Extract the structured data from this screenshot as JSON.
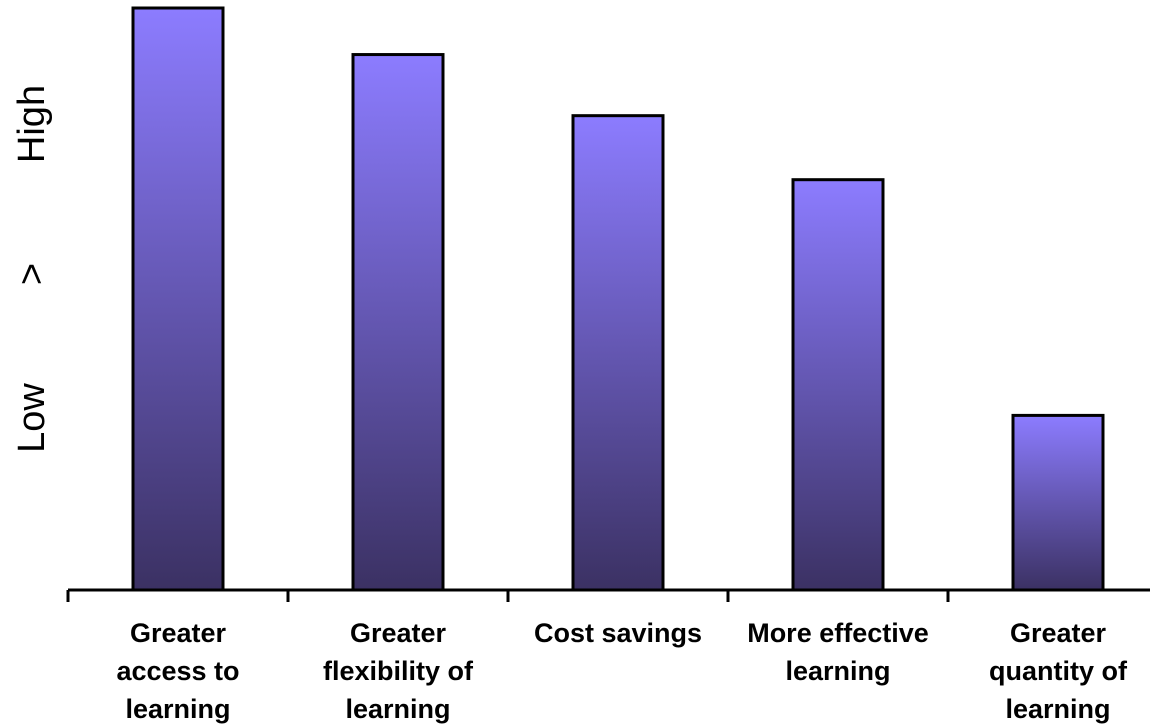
{
  "chart_data": {
    "type": "bar",
    "title": "",
    "xlabel": "",
    "ylabel_parts": [
      "Low",
      ">",
      "High"
    ],
    "categories": [
      [
        "Greater",
        "access to",
        "learning"
      ],
      [
        "Greater",
        "flexibility of",
        "learning"
      ],
      [
        "Cost savings"
      ],
      [
        "More effective",
        "learning"
      ],
      [
        "Greater",
        "quantity of",
        "learning"
      ]
    ],
    "values": [
      100,
      92,
      81.5,
      70.5,
      30
    ],
    "ylim": [
      0,
      100
    ],
    "grid": false,
    "legend": "none",
    "colors": {
      "bar_top": "#8c7cff",
      "bar_bottom": "#3b3163",
      "bar_outline": "#000000",
      "axis": "#000000"
    }
  }
}
